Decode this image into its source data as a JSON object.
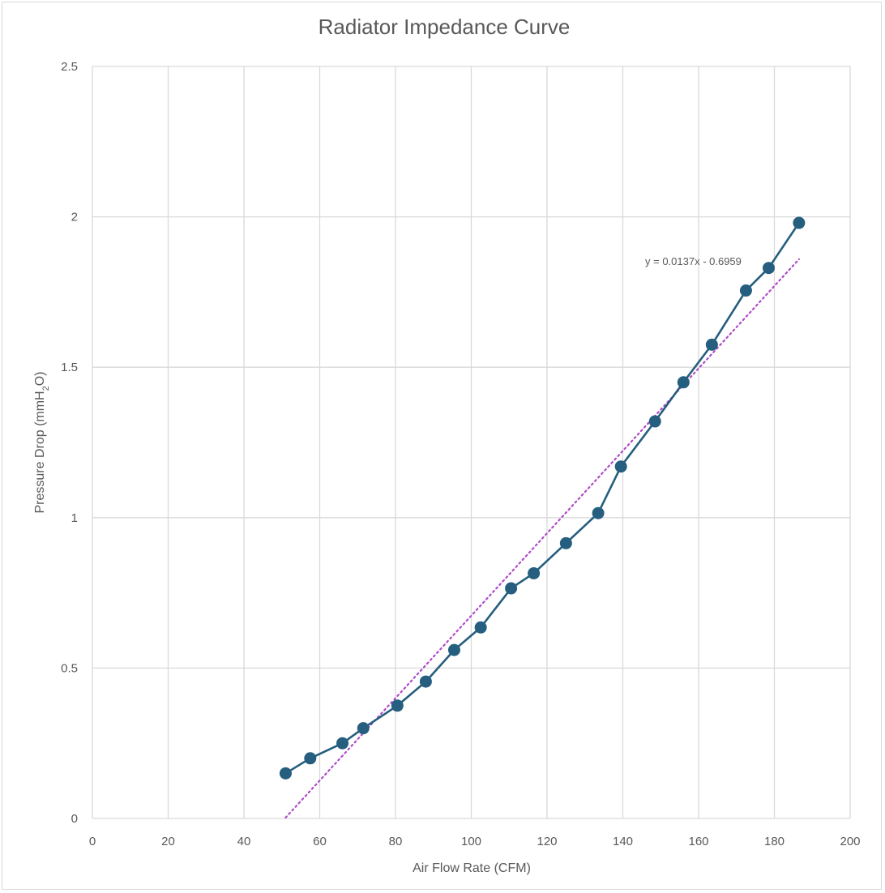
{
  "chart_data": {
    "type": "line",
    "title": "Radiator Impedance Curve",
    "xlabel": "Air Flow Rate (CFM)",
    "ylabel": "Pressure Drop (mmH2O)",
    "ylabel_parts": {
      "before": "Pressure Drop (mmH",
      "sub": "2",
      "after": "O)"
    },
    "xlim": [
      0,
      200
    ],
    "ylim": [
      0,
      2.5
    ],
    "x_ticks": [
      "0",
      "20",
      "40",
      "60",
      "80",
      "100",
      "120",
      "140",
      "160",
      "180",
      "200"
    ],
    "y_ticks": [
      "0",
      "0.5",
      "1",
      "1.5",
      "2",
      "2.5"
    ],
    "grid": true,
    "legend": "none",
    "series": [
      {
        "color": "#255e7e",
        "marker": "circle",
        "x": [
          51,
          57.5,
          66,
          71.5,
          80.5,
          88,
          95.5,
          102.5,
          110.5,
          116.5,
          125,
          133.5,
          139.5,
          148.5,
          156,
          163.5,
          172.5,
          178.5,
          186.5
        ],
        "y": [
          0.15,
          0.2,
          0.25,
          0.3,
          0.375,
          0.455,
          0.56,
          0.635,
          0.765,
          0.815,
          0.915,
          1.015,
          1.17,
          1.32,
          1.45,
          1.575,
          1.755,
          1.83,
          1.98
        ]
      }
    ],
    "trendline": {
      "type": "linear",
      "slope": 0.0137,
      "intercept": -0.6959,
      "x_range": [
        51,
        186.5
      ],
      "color": "#b04ac9",
      "style": "dotted",
      "equation_label": "y = 0.0137x - 0.6959"
    }
  }
}
